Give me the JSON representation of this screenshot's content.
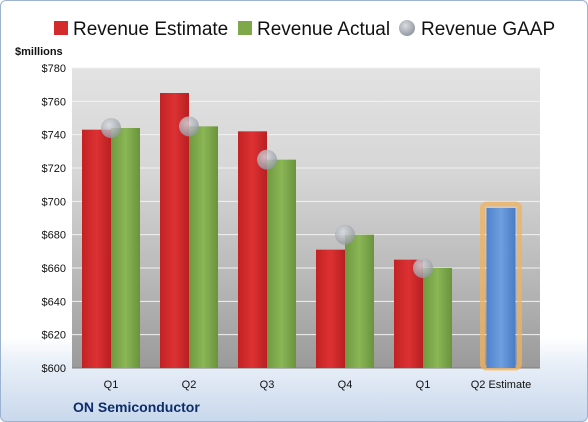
{
  "chart_data": {
    "type": "bar",
    "ylabel": "$millions",
    "ylim": [
      600,
      780
    ],
    "yticks": [
      600,
      620,
      640,
      660,
      680,
      700,
      720,
      740,
      760,
      780
    ],
    "ytick_labels": [
      "$600",
      "$620",
      "$640",
      "$660",
      "$680",
      "$700",
      "$720",
      "$740",
      "$760",
      "$780"
    ],
    "categories": [
      "Q1",
      "Q2",
      "Q3",
      "Q4",
      "Q1",
      "Q2 Estimate"
    ],
    "series": [
      {
        "name": "Revenue Estimate",
        "type": "bar",
        "color": "#d42a2c",
        "values": [
          743,
          765,
          742,
          671,
          665,
          null
        ]
      },
      {
        "name": "Revenue Actual",
        "type": "bar",
        "color": "#7ea84a",
        "values": [
          744,
          745,
          725,
          680,
          660,
          696
        ]
      },
      {
        "name": "Revenue GAAP",
        "type": "scatter",
        "color": "#9aa0a8",
        "values": [
          744,
          745,
          725,
          680,
          660,
          null
        ]
      }
    ],
    "highlight": {
      "category_index": 5,
      "bar_color": "#5b8fd6",
      "glow_color": "#f2b15e"
    },
    "legend_position": "top",
    "grid": true,
    "footer_label": "ON Semiconductor"
  }
}
